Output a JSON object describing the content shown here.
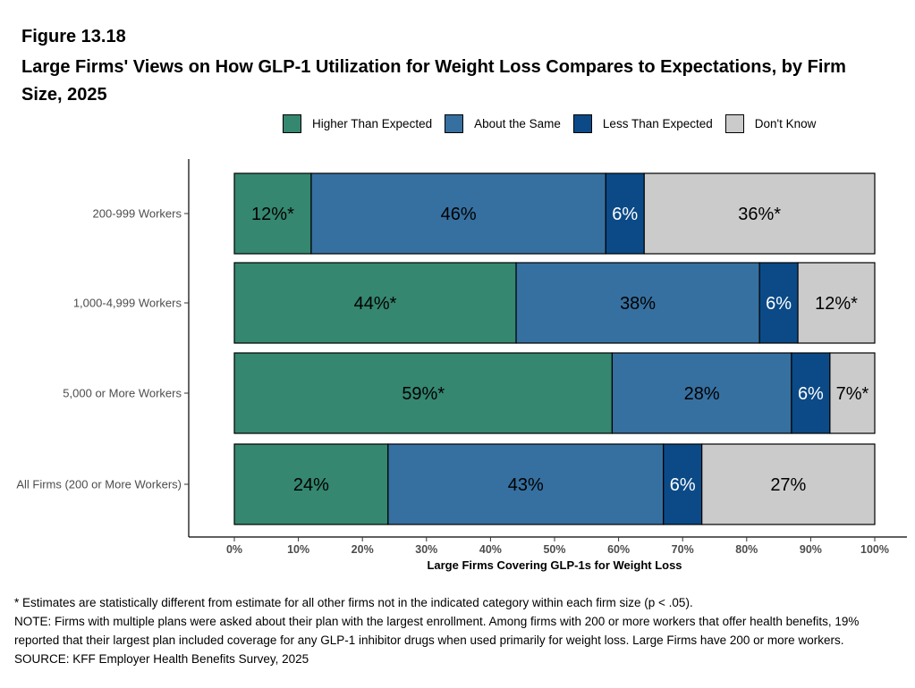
{
  "figure_number": "Figure 13.18",
  "title": "Large Firms' Views on How GLP-1 Utilization for Weight Loss Compares to Expectations, by Firm Size, 2025",
  "colors": {
    "Higher Than Expected": "#35876F",
    "About the Same": "#3670A0",
    "Less Than Expected": "#0B4A87",
    "Don't Know": "#CBCBCB"
  },
  "label_colors": {
    "Higher Than Expected": "#000000",
    "About the Same": "#000000",
    "Less Than Expected": "#ffffff",
    "Don't Know": "#000000"
  },
  "chart_data": {
    "type": "bar",
    "orientation": "horizontal",
    "stacked": true,
    "categories": [
      "200-999 Workers",
      "1,000-4,999 Workers",
      "5,000 or More Workers",
      "All Firms (200 or More Workers)"
    ],
    "series": [
      {
        "name": "Higher Than Expected",
        "values": [
          12,
          44,
          59,
          24
        ],
        "labels": [
          "12%*",
          "44%*",
          "59%*",
          "24%"
        ]
      },
      {
        "name": "About the Same",
        "values": [
          46,
          38,
          28,
          43
        ],
        "labels": [
          "46%",
          "38%",
          "28%",
          "43%"
        ]
      },
      {
        "name": "Less Than Expected",
        "values": [
          6,
          6,
          6,
          6
        ],
        "labels": [
          "6%",
          "6%",
          "6%",
          "6%"
        ]
      },
      {
        "name": "Don't Know",
        "values": [
          36,
          12,
          7,
          27
        ],
        "labels": [
          "36%*",
          "12%*",
          "7%*",
          "27%"
        ]
      }
    ],
    "xlabel": "Large Firms Covering GLP-1s for Weight Loss",
    "ylabel": "",
    "xlim": [
      0,
      100
    ],
    "x_ticks": [
      "0%",
      "10%",
      "20%",
      "30%",
      "40%",
      "50%",
      "60%",
      "70%",
      "80%",
      "90%",
      "100%"
    ],
    "legend_position": "top",
    "grid": false
  },
  "notes": {
    "asterisk": "* Estimates are statistically different from estimate for all other firms not in the indicated category within each firm size (p < .05).",
    "note": "NOTE: Firms with multiple plans were asked about their plan with the largest enrollment.  Among firms with 200 or more workers that offer health benefits, 19% reported that their largest plan included coverage for any GLP-1 inhibitor drugs when used primarily for weight loss. Large Firms have 200 or more workers.",
    "source": "SOURCE: KFF Employer Health Benefits Survey, 2025"
  }
}
